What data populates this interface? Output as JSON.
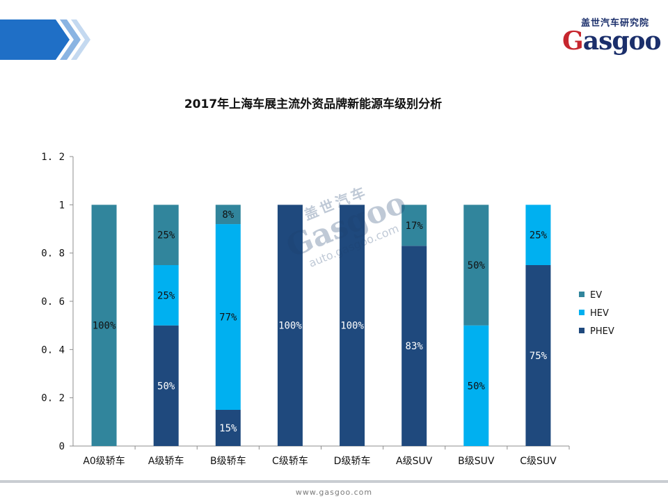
{
  "logo": {
    "tagline": "盖世汽车研究院",
    "word_first": "G",
    "word_rest": "asgoo"
  },
  "watermark": {
    "tag": "盖世汽车",
    "word": "Gasgoo",
    "url": "auto.gasgoo.com"
  },
  "footer": {
    "url": "www.gasgoo.com"
  },
  "colors": {
    "EV": "#31859c",
    "HEV": "#00b0f0",
    "PHEV": "#1f497d",
    "header_blue": "#1f6fc6",
    "logo_blue": "#1b2f6b",
    "logo_red": "#c6262e"
  },
  "chart_data": {
    "type": "bar",
    "stacked": true,
    "title": "2017年上海车展主流外资品牌新能源车级别分析",
    "xlabel": "",
    "ylabel": "",
    "ylim": [
      0,
      1.2
    ],
    "yticks": [
      "0",
      "0. 2",
      "0. 4",
      "0. 6",
      "0. 8",
      "1",
      "1. 2"
    ],
    "grid": false,
    "legend_position": "right",
    "categories": [
      "A0级轿车",
      "A级轿车",
      "B级轿车",
      "C级轿车",
      "D级轿车",
      "A级SUV",
      "B级SUV",
      "C级SUV"
    ],
    "series": [
      {
        "name": "PHEV",
        "color": "#1f497d",
        "label_color": "#ffffff",
        "values": [
          0,
          0.5,
          0.15,
          1.0,
          1.0,
          0.83,
          0,
          0.75
        ],
        "labels": [
          "",
          "50%",
          "15%",
          "100%",
          "100%",
          "83%",
          "",
          "75%"
        ]
      },
      {
        "name": "HEV",
        "color": "#00b0f0",
        "label_color": "#111111",
        "values": [
          0,
          0.25,
          0.77,
          0,
          0,
          0,
          0.5,
          0.25
        ],
        "labels": [
          "",
          "25%",
          "77%",
          "",
          "",
          "",
          "50%",
          "25%"
        ]
      },
      {
        "name": "EV",
        "color": "#31859c",
        "label_color": "#111111",
        "values": [
          1.0,
          0.25,
          0.08,
          0,
          0,
          0.17,
          0.5,
          0
        ],
        "labels": [
          "100%",
          "25%",
          "8%",
          "",
          "",
          "17%",
          "50%",
          ""
        ]
      }
    ],
    "legend_order": [
      "EV",
      "HEV",
      "PHEV"
    ]
  }
}
